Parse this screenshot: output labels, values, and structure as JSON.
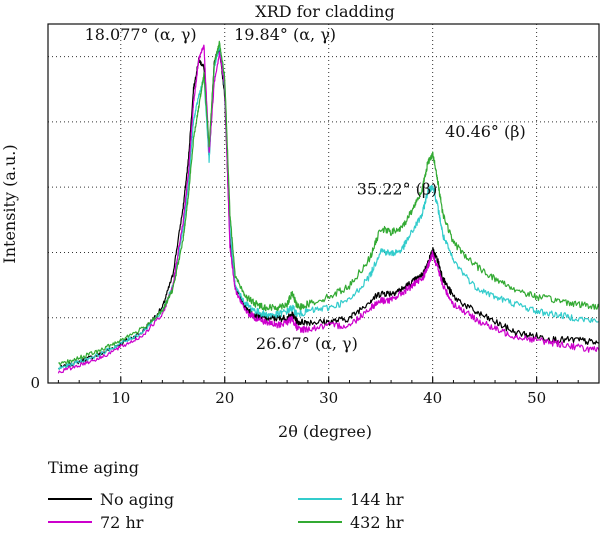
{
  "chart_data": {
    "type": "line",
    "title": "XRD for cladding",
    "xlabel": "2θ (degree)",
    "ylabel": "Intensity (a.u.)",
    "xlim": [
      3,
      56
    ],
    "ylim": [
      0,
      1.0
    ],
    "x_ticks": [
      "10",
      "20",
      "30",
      "40",
      "50"
    ],
    "x_tick_values": [
      10,
      20,
      30,
      40,
      50
    ],
    "y_ticks": [
      "0"
    ],
    "y_tick_values": [
      0
    ],
    "grid": "minor dotted",
    "legend": {
      "title": "Time aging",
      "placement": "bottom"
    },
    "x": [
      4,
      6,
      8,
      10,
      12,
      14,
      15,
      16,
      16.5,
      17,
      17.5,
      18,
      18.5,
      19,
      19.5,
      20,
      20.5,
      21,
      22,
      23,
      24,
      25,
      26,
      26.5,
      27,
      28,
      30,
      32,
      34,
      35,
      36,
      37,
      38,
      39,
      39.5,
      40,
      40.5,
      41,
      42,
      44,
      46,
      48,
      50,
      52,
      54,
      56
    ],
    "series": [
      {
        "name": "No aging",
        "color": "#000000",
        "values": [
          0.04,
          0.06,
          0.08,
          0.11,
          0.14,
          0.21,
          0.3,
          0.49,
          0.62,
          0.82,
          0.9,
          0.88,
          0.63,
          0.9,
          0.93,
          0.8,
          0.4,
          0.27,
          0.21,
          0.19,
          0.18,
          0.18,
          0.18,
          0.19,
          0.17,
          0.17,
          0.17,
          0.18,
          0.23,
          0.25,
          0.25,
          0.26,
          0.28,
          0.3,
          0.33,
          0.37,
          0.34,
          0.29,
          0.24,
          0.2,
          0.17,
          0.14,
          0.13,
          0.12,
          0.12,
          0.11
        ]
      },
      {
        "name": "144 hr",
        "color": "#33cccc",
        "values": [
          0.04,
          0.06,
          0.08,
          0.11,
          0.14,
          0.2,
          0.27,
          0.43,
          0.55,
          0.73,
          0.8,
          0.85,
          0.62,
          0.88,
          0.94,
          0.82,
          0.43,
          0.27,
          0.22,
          0.2,
          0.19,
          0.19,
          0.2,
          0.21,
          0.19,
          0.2,
          0.21,
          0.23,
          0.3,
          0.37,
          0.36,
          0.37,
          0.42,
          0.47,
          0.53,
          0.55,
          0.49,
          0.41,
          0.34,
          0.27,
          0.24,
          0.22,
          0.2,
          0.19,
          0.18,
          0.17
        ]
      },
      {
        "name": "72 hr",
        "color": "#cc00cc",
        "values": [
          0.03,
          0.05,
          0.07,
          0.1,
          0.13,
          0.19,
          0.27,
          0.45,
          0.58,
          0.78,
          0.9,
          0.94,
          0.64,
          0.84,
          0.92,
          0.83,
          0.38,
          0.26,
          0.2,
          0.18,
          0.17,
          0.16,
          0.17,
          0.18,
          0.15,
          0.15,
          0.16,
          0.16,
          0.21,
          0.23,
          0.23,
          0.25,
          0.27,
          0.29,
          0.32,
          0.36,
          0.32,
          0.27,
          0.22,
          0.18,
          0.15,
          0.13,
          0.12,
          0.11,
          0.1,
          0.09
        ]
      },
      {
        "name": "432 hr",
        "color": "#33aa33",
        "values": [
          0.05,
          0.07,
          0.09,
          0.12,
          0.15,
          0.2,
          0.26,
          0.4,
          0.52,
          0.68,
          0.77,
          0.86,
          0.66,
          0.89,
          0.95,
          0.85,
          0.47,
          0.3,
          0.24,
          0.22,
          0.21,
          0.21,
          0.22,
          0.25,
          0.21,
          0.22,
          0.24,
          0.27,
          0.35,
          0.43,
          0.42,
          0.43,
          0.48,
          0.54,
          0.61,
          0.64,
          0.56,
          0.47,
          0.39,
          0.33,
          0.29,
          0.26,
          0.24,
          0.23,
          0.22,
          0.21
        ]
      }
    ],
    "annotations": [
      {
        "text": "18.077° (α, γ)",
        "x": 17.3,
        "y": 0.955,
        "anchor": "end"
      },
      {
        "text": "19.84° (α, γ)",
        "x": 20.9,
        "y": 0.955,
        "anchor": "start"
      },
      {
        "text": "40.46° (β)",
        "x": 41.2,
        "y": 0.685,
        "anchor": "start"
      },
      {
        "text": "35.22° (β)",
        "x": 32.7,
        "y": 0.525,
        "anchor": "start"
      },
      {
        "text": "26.67° (α, γ)",
        "x": 23.0,
        "y": 0.095,
        "anchor": "start"
      }
    ]
  }
}
